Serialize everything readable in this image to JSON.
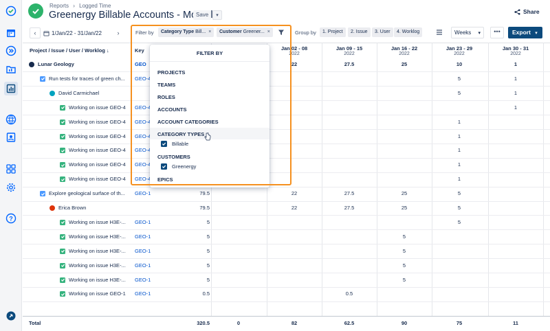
{
  "header": {
    "breadcrumbs": [
      "Reports",
      "›",
      "Logged Time"
    ],
    "title": "Greenergy Billable Accounts - Monthly",
    "save_label": "Save",
    "share_label": "Share"
  },
  "toolbar": {
    "date_range": "1/Jan/22 - 31/Jan/22",
    "filter_by_label": "Filter by",
    "filter_chips": [
      {
        "key": "Category Type",
        "value": "Bill..."
      },
      {
        "key": "Customer",
        "value": "Greener..."
      }
    ],
    "group_by_label": "Group by",
    "group_chips": [
      "1. Project",
      "2. Issue",
      "3. User",
      "4. Worklog"
    ],
    "period_select": "Weeks",
    "more_label": "•••",
    "export_label": "Export"
  },
  "table": {
    "col_project": "Project / Issue / User / Worklog",
    "col_key": "Key",
    "periods": [
      {
        "label": "Jan 02 - 08",
        "year": "2022"
      },
      {
        "label": "Jan 09 - 15",
        "year": "2022"
      },
      {
        "label": "Jan 16 - 22",
        "year": "2022"
      },
      {
        "label": "Jan 23 - 29",
        "year": "2022"
      },
      {
        "label": "Jan 30 - 31",
        "year": "2022"
      }
    ],
    "rows": [
      {
        "label": "Lunar Geology",
        "key": "GEO",
        "total": "",
        "cells": [
          "22",
          "27.5",
          "25",
          "10",
          "1"
        ]
      },
      {
        "label": "Run tests for traces of green ch...",
        "key": "GEO-4",
        "total": "",
        "cells": [
          "",
          "",
          "",
          "5",
          "1"
        ]
      },
      {
        "label": "David Carmichael",
        "key": "",
        "total": "",
        "cells": [
          "",
          "",
          "",
          "5",
          "1"
        ]
      },
      {
        "label": "Working on issue GEO-4",
        "key": "GEO-4",
        "total": "",
        "cells": [
          "",
          "",
          "",
          "",
          "1"
        ]
      },
      {
        "label": "Working on issue GEO-4",
        "key": "GEO-4",
        "total": "",
        "cells": [
          "",
          "",
          "",
          "1",
          ""
        ]
      },
      {
        "label": "Working on issue GEO-4",
        "key": "GEO-4",
        "total": "",
        "cells": [
          "",
          "",
          "",
          "1",
          ""
        ]
      },
      {
        "label": "Working on issue GEO-4",
        "key": "GEO-4",
        "total": "",
        "cells": [
          "",
          "",
          "",
          "1",
          ""
        ]
      },
      {
        "label": "Working on issue GEO-4",
        "key": "GEO-4",
        "total": "",
        "cells": [
          "",
          "",
          "",
          "1",
          ""
        ]
      },
      {
        "label": "Working on issue GEO-4",
        "key": "GEO-4",
        "total": "",
        "cells": [
          "",
          "",
          "",
          "1",
          ""
        ]
      },
      {
        "label": "Explore geological surface of th...",
        "key": "GEO-1",
        "total": "79.5",
        "cells": [
          "22",
          "27.5",
          "25",
          "5",
          ""
        ]
      },
      {
        "label": "Erica Brown",
        "key": "",
        "total": "79.5",
        "cells": [
          "22",
          "27.5",
          "25",
          "5",
          ""
        ]
      },
      {
        "label": "Working on issue H3E-...",
        "key": "GEO-1",
        "total": "5",
        "cells": [
          "",
          "",
          "",
          "5",
          ""
        ]
      },
      {
        "label": "Working on issue H3E-...",
        "key": "GEO-1",
        "total": "5",
        "cells": [
          "",
          "",
          "5",
          "",
          ""
        ]
      },
      {
        "label": "Working on issue H3E-...",
        "key": "GEO-1",
        "total": "5",
        "cells": [
          "",
          "",
          "5",
          "",
          ""
        ]
      },
      {
        "label": "Working on issue H3E-...",
        "key": "GEO-1",
        "total": "5",
        "cells": [
          "",
          "",
          "5",
          "",
          ""
        ]
      },
      {
        "label": "Working on issue H3E-...",
        "key": "GEO-1",
        "total": "5",
        "cells": [
          "",
          "",
          "5",
          "",
          ""
        ]
      },
      {
        "label": "Working on issue GEO-1",
        "key": "GEO-1",
        "total": "0.5",
        "cells": [
          "",
          "0.5",
          "",
          "",
          ""
        ]
      }
    ],
    "total_row": {
      "label": "Total",
      "total": "320.5",
      "col0": "0",
      "cells": [
        "82",
        "62.5",
        "90",
        "75",
        "11"
      ]
    }
  },
  "filter_dropdown": {
    "title": "FILTER BY",
    "sections": [
      "PROJECTS",
      "TEAMS",
      "ROLES",
      "ACCOUNTS",
      "ACCOUNT CATEGORIES",
      "CATEGORY TYPES",
      "CUSTOMERS",
      "EPICS"
    ],
    "category_option": "Billable",
    "customer_option": "Greenergy"
  },
  "colors": {
    "accent": "#0c4a7d",
    "highlight": "#f5901e",
    "logo": "#2db36b",
    "link": "#0052cc",
    "checkbox_green": "#36b37e",
    "checkbox_blue": "#4c9aff"
  }
}
